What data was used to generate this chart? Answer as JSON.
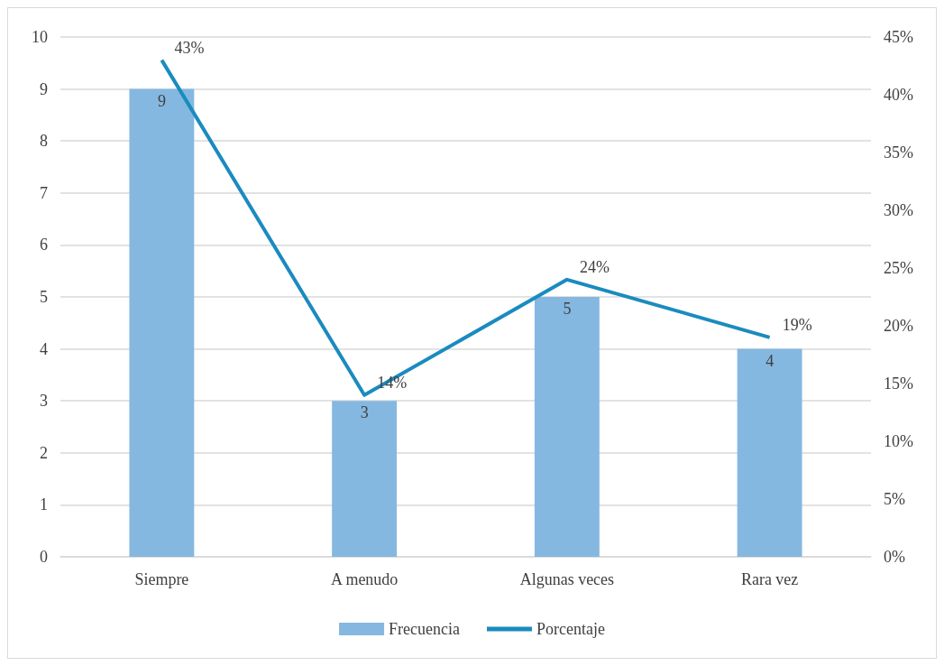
{
  "chart_data": {
    "type": "bar",
    "categories": [
      "Siempre",
      "A menudo",
      "Algunas veces",
      "Rara vez"
    ],
    "series": [
      {
        "name": "Frecuencia",
        "color": "#85b8e0",
        "values": [
          9,
          3,
          5,
          4
        ],
        "value_labels": [
          "9",
          "3",
          "5",
          "4"
        ]
      },
      {
        "name": "Porcentaje",
        "type": "line",
        "axis": "y2",
        "color": "#1a8bbf",
        "values": [
          43,
          14,
          24,
          19
        ],
        "value_labels": [
          "43%",
          "14%",
          "24%",
          "19%"
        ]
      }
    ],
    "ylim": [
      0,
      10
    ],
    "yticks": [
      0,
      1,
      2,
      3,
      4,
      5,
      6,
      7,
      8,
      9,
      10
    ],
    "y2lim": [
      0,
      45
    ],
    "y2ticks": [
      {
        "value": 0,
        "label": "0%"
      },
      {
        "value": 5,
        "label": "5%"
      },
      {
        "value": 10,
        "label": "10%"
      },
      {
        "value": 15,
        "label": "15%"
      },
      {
        "value": 20,
        "label": "20%"
      },
      {
        "value": 25,
        "label": "25%"
      },
      {
        "value": 30,
        "label": "30%"
      },
      {
        "value": 35,
        "label": "35%"
      },
      {
        "value": 40,
        "label": "40%"
      },
      {
        "value": 45,
        "label": "45%"
      }
    ],
    "grid": "y",
    "legend": "bottom",
    "marker": "none"
  }
}
